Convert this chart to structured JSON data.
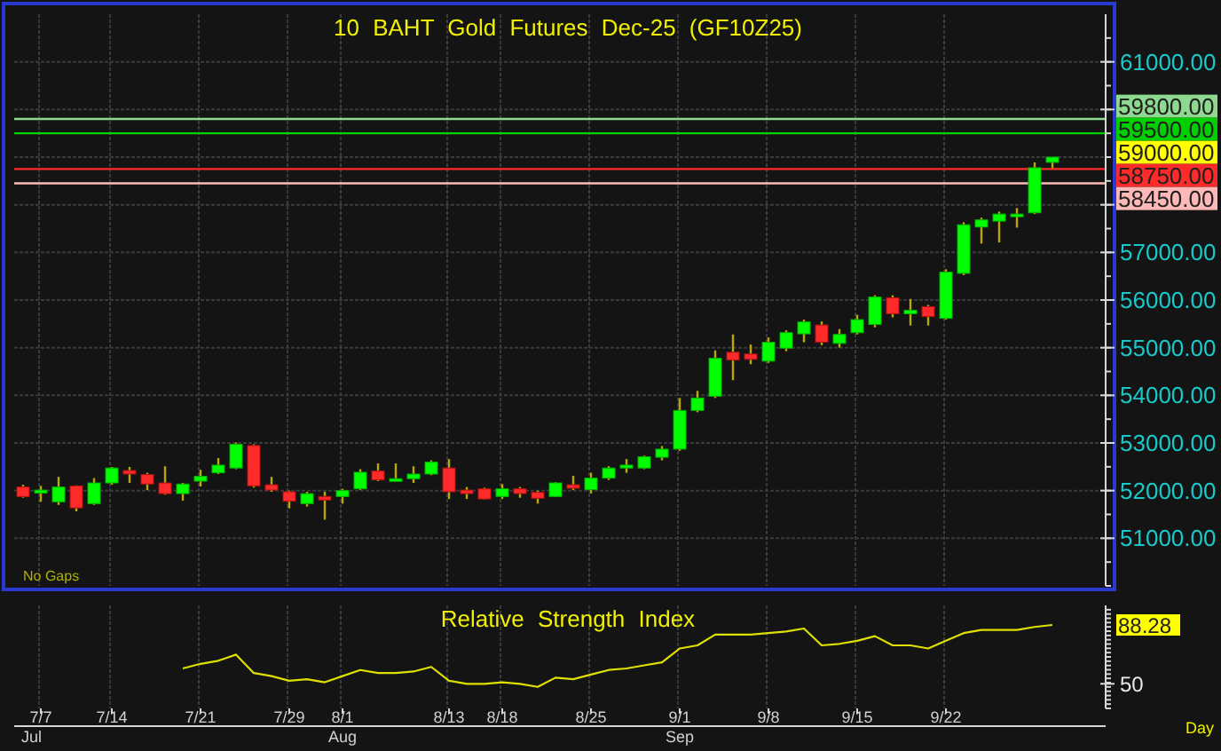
{
  "chart_data": [
    {
      "type": "candlestick",
      "title": "10 BAHT Gold Futures Dec-25 (GF10Z25)",
      "tick_labels": "y",
      "grid": true,
      "categories": [
        null,
        null,
        null,
        null,
        null,
        null,
        null,
        null,
        null,
        null,
        null,
        null,
        null,
        null,
        null,
        null,
        null,
        null,
        null,
        null,
        null,
        null,
        null,
        null,
        null,
        null,
        null,
        null,
        null,
        null,
        null,
        null,
        null,
        null,
        null,
        null,
        null,
        null,
        null,
        null,
        null,
        null,
        null,
        null,
        null,
        null,
        null,
        null,
        null,
        null,
        null,
        null,
        null,
        null,
        null,
        null,
        null,
        null,
        null
      ],
      "ohlc": [
        [
          52075,
          52123,
          51850,
          51875
        ],
        [
          51950,
          52100,
          51765,
          52011
        ],
        [
          51765,
          52288,
          51700,
          52075
        ],
        [
          52100,
          52110,
          51563,
          51637
        ],
        [
          51727,
          52262,
          51700,
          52161
        ],
        [
          52161,
          52497,
          52123,
          52475
        ],
        [
          52422,
          52497,
          52161,
          52348
        ],
        [
          52336,
          52374,
          52011,
          52138
        ],
        [
          52161,
          52511,
          51914,
          51937
        ],
        [
          51937,
          52161,
          51787,
          52138
        ],
        [
          52198,
          52437,
          52086,
          52299
        ],
        [
          52374,
          52684,
          52348,
          52535
        ],
        [
          52475,
          53009,
          52449,
          52972
        ],
        [
          52946,
          52972,
          52064,
          52100
        ],
        [
          52123,
          52288,
          51975,
          52011
        ],
        [
          51975,
          52000,
          51626,
          51776
        ],
        [
          51727,
          51975,
          51664,
          51937
        ],
        [
          51877,
          51975,
          51390,
          51802
        ],
        [
          51877,
          52037,
          51727,
          52000
        ],
        [
          52037,
          52449,
          52011,
          52385
        ],
        [
          52411,
          52572,
          52198,
          52224
        ],
        [
          52198,
          52572,
          52198,
          52250
        ],
        [
          52250,
          52511,
          52161,
          52348
        ],
        [
          52348,
          52635,
          52325,
          52598
        ],
        [
          52475,
          52662,
          51824,
          51975
        ],
        [
          52011,
          52075,
          51824,
          51937
        ],
        [
          52037,
          52064,
          51813,
          51824
        ],
        [
          51877,
          52138,
          51824,
          52037
        ],
        [
          52037,
          52075,
          51850,
          51937
        ],
        [
          51963,
          52000,
          51727,
          51839
        ],
        [
          51877,
          52175,
          51862,
          52161
        ],
        [
          52123,
          52310,
          52011,
          52049
        ],
        [
          52020,
          52374,
          51937,
          52262
        ],
        [
          52262,
          52512,
          52224,
          52474
        ],
        [
          52474,
          52662,
          52374,
          52535
        ],
        [
          52474,
          52736,
          52449,
          52710
        ],
        [
          52700,
          52935,
          52635,
          52871
        ],
        [
          52871,
          53944,
          52834,
          53682
        ],
        [
          53682,
          54093,
          53645,
          53944
        ],
        [
          53981,
          54942,
          53944,
          54777
        ],
        [
          54904,
          55278,
          54318,
          54740
        ],
        [
          54867,
          55065,
          54654,
          54755
        ],
        [
          54717,
          55215,
          54680,
          55114
        ],
        [
          54990,
          55364,
          54927,
          55316
        ],
        [
          55290,
          55589,
          55114,
          55540
        ],
        [
          55477,
          55551,
          55053,
          55114
        ],
        [
          55090,
          55390,
          55002,
          55278
        ],
        [
          55315,
          55690,
          55278,
          55589
        ],
        [
          55488,
          56100,
          55427,
          56063
        ],
        [
          56048,
          56100,
          55637,
          55712
        ],
        [
          55712,
          56024,
          55465,
          55787
        ],
        [
          55861,
          55898,
          55465,
          55652
        ],
        [
          55615,
          56647,
          55589,
          56587
        ],
        [
          56560,
          57633,
          56523,
          57581
        ],
        [
          57532,
          57730,
          57185,
          57682
        ],
        [
          57656,
          57857,
          57210,
          57805
        ],
        [
          57757,
          57932,
          57520,
          57805
        ],
        [
          57831,
          58890,
          57805,
          58777
        ],
        [
          58890,
          59000,
          58770,
          59000
        ]
      ],
      "ylim": [
        50000,
        62000
      ],
      "yticks": [
        {
          "value": 51000,
          "label": "51000.00"
        },
        {
          "value": 52000,
          "label": "52000.00"
        },
        {
          "value": 53000,
          "label": "53000.00"
        },
        {
          "value": 54000,
          "label": "54000.00"
        },
        {
          "value": 55000,
          "label": "55000.00"
        },
        {
          "value": 56000,
          "label": "56000.00"
        },
        {
          "value": 57000,
          "label": "57000.00"
        },
        {
          "value": 58000,
          "label": null
        },
        {
          "value": 59000,
          "label": "59000.00"
        },
        {
          "value": 60000,
          "label": null
        },
        {
          "value": 61000,
          "label": "61000.00"
        }
      ],
      "ref_lines": [
        {
          "axis": "y",
          "value": 59800,
          "label": "59800.00",
          "color": "#8fd88f"
        },
        {
          "axis": "y",
          "value": 59500,
          "label": "59500.00",
          "color": "#00d000"
        },
        {
          "axis": "y",
          "value": 58750,
          "label": "58750.00",
          "color": "#ff2a2a"
        },
        {
          "axis": "y",
          "value": 58450,
          "label": "58450.00",
          "color": "#ffb8b8"
        }
      ],
      "annotations": [
        "No Gaps"
      ]
    },
    {
      "type": "line",
      "title": "Relative Strength Index",
      "grid": "x",
      "categories": [
        null,
        "7/7",
        null,
        null,
        null,
        "7/14",
        null,
        null,
        null,
        null,
        "7/21",
        null,
        null,
        null,
        null,
        "7/29",
        null,
        null,
        "8/1",
        null,
        null,
        null,
        null,
        null,
        "8/13",
        null,
        null,
        "8/18",
        null,
        null,
        null,
        null,
        "8/25",
        null,
        null,
        null,
        null,
        "9/1",
        null,
        null,
        null,
        null,
        "9/8",
        null,
        null,
        null,
        null,
        "9/15",
        null,
        null,
        null,
        null,
        "9/22",
        null,
        null,
        null,
        null,
        null,
        null
      ],
      "series": [
        {
          "color": "#e0e000",
          "values": [
            null,
            null,
            null,
            null,
            null,
            null,
            null,
            null,
            null,
            60,
            63,
            65,
            69,
            57,
            55,
            52,
            53,
            51,
            55,
            59,
            57,
            57,
            58,
            61,
            52,
            50,
            50,
            51,
            50,
            48,
            54,
            53,
            56,
            59,
            60,
            62,
            64,
            73,
            75,
            82,
            82,
            82,
            83,
            84,
            86,
            75,
            76,
            78,
            81,
            75,
            75,
            73,
            78,
            83,
            85,
            85,
            85,
            87,
            88.28
          ]
        }
      ],
      "ylim": [
        34,
        101
      ],
      "yticks": [
        50,
        {
          "value": 88.28,
          "label": "88.28"
        }
      ],
      "annotations": [
        "Jul",
        {
          "text": "Aug",
          "x": "8/1"
        },
        {
          "text": "Sep",
          "x": "9/1"
        },
        "Day"
      ]
    }
  ]
}
